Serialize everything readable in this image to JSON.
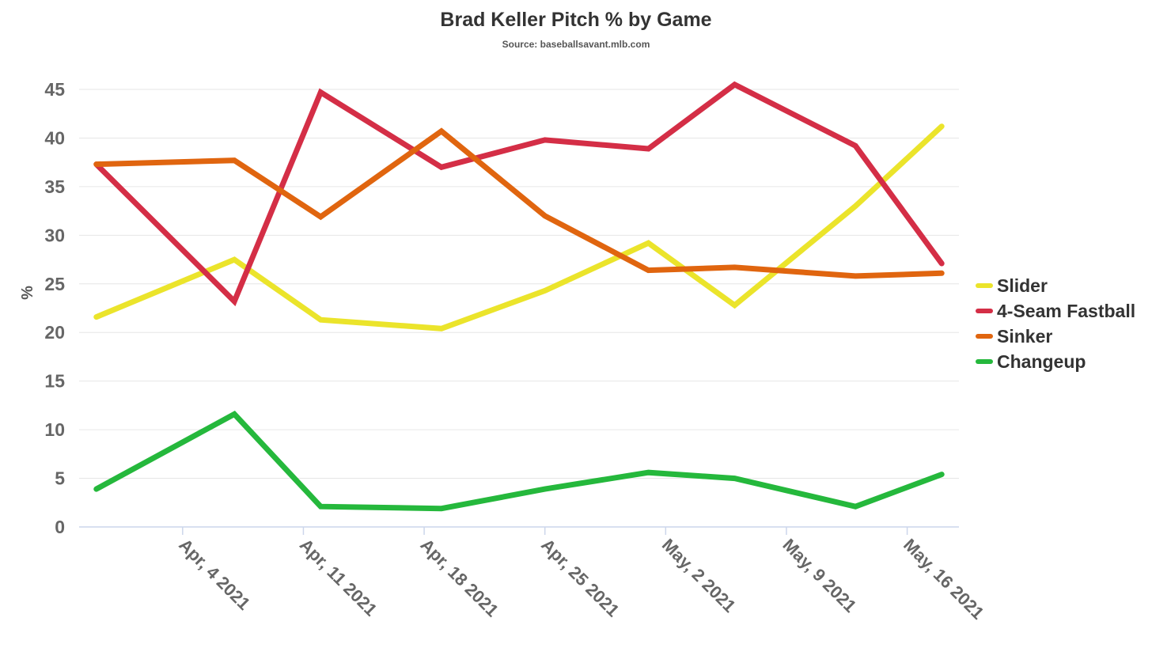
{
  "chart_data": {
    "type": "line",
    "title": "Brad Keller Pitch % by Game",
    "subtitle": "Source: baseballsavant.mlb.com",
    "ylabel": "%",
    "xlabel": "",
    "ylim": [
      0,
      45
    ],
    "yticks": [
      0,
      5,
      10,
      15,
      20,
      25,
      30,
      35,
      40,
      45
    ],
    "xlim": [
      "2021-03-29",
      "2021-05-19"
    ],
    "xticks": [
      {
        "date": "2021-04-04",
        "label": "Apr, 4 2021"
      },
      {
        "date": "2021-04-11",
        "label": "Apr, 11 2021"
      },
      {
        "date": "2021-04-18",
        "label": "Apr, 18 2021"
      },
      {
        "date": "2021-04-25",
        "label": "Apr, 25 2021"
      },
      {
        "date": "2021-05-02",
        "label": "May, 2 2021"
      },
      {
        "date": "2021-05-09",
        "label": "May, 9 2021"
      },
      {
        "date": "2021-05-16",
        "label": "May, 16 2021"
      }
    ],
    "x": [
      "2021-03-30",
      "2021-04-07",
      "2021-04-12",
      "2021-04-19",
      "2021-04-25",
      "2021-05-01",
      "2021-05-06",
      "2021-05-13",
      "2021-05-18"
    ],
    "grid": true,
    "legend": "right",
    "series": [
      {
        "name": "Slider",
        "color": "#ebe42b",
        "values": [
          21.6,
          27.5,
          21.3,
          20.4,
          24.3,
          29.2,
          22.8,
          33.0,
          41.2
        ]
      },
      {
        "name": "4-Seam Fastball",
        "color": "#d42e46",
        "values": [
          37.3,
          23.2,
          44.7,
          37.0,
          39.8,
          38.9,
          45.5,
          39.2,
          27.1
        ]
      },
      {
        "name": "Sinker",
        "color": "#e0650f",
        "values": [
          37.3,
          37.7,
          31.9,
          40.7,
          32.0,
          26.4,
          26.7,
          25.8,
          26.1
        ]
      },
      {
        "name": "Changeup",
        "color": "#25b83c",
        "values": [
          3.9,
          11.6,
          2.1,
          1.9,
          3.9,
          5.6,
          5.0,
          2.1,
          5.4
        ]
      }
    ]
  }
}
